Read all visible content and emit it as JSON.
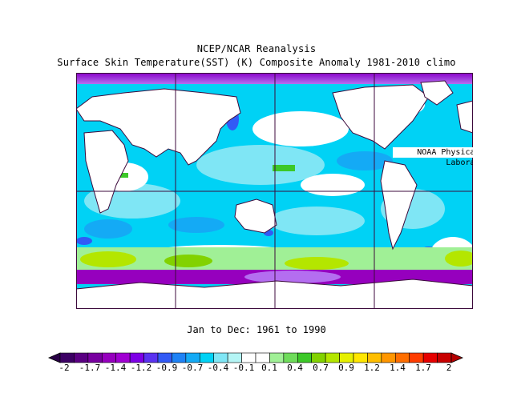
{
  "title_line1": "NCEP/NCAR Reanalysis",
  "title_line2": "Surface Skin Temperature(SST) (K) Composite Anomaly 1981-2010 climo",
  "credit": "NOAA Physical Sciences Laboratory",
  "period": "Jan to Dec: 1961 to 1990",
  "colorbar": {
    "labels": [
      "-2",
      "-1.7",
      "-1.4",
      "-1.2",
      "-0.9",
      "-0.7",
      "-0.4",
      "-0.1",
      "0.1",
      "0.4",
      "0.7",
      "0.9",
      "1.2",
      "1.4",
      "1.7",
      "2"
    ],
    "colors": [
      "#3c0064",
      "#5a0082",
      "#7800a0",
      "#9600be",
      "#a000d2",
      "#7d00e6",
      "#5a32f0",
      "#325af5",
      "#1e82f5",
      "#14aaf5",
      "#00d2f5",
      "#7fe6f5",
      "#b4f5f5",
      "#ffffff",
      "#ffffff",
      "#a0f096",
      "#6edc5a",
      "#3cc828",
      "#82d200",
      "#b4e600",
      "#e6f000",
      "#ffe600",
      "#ffbe00",
      "#ff9600",
      "#ff6e00",
      "#ff3c00",
      "#e60000",
      "#c80000"
    ],
    "below_color": "#280046",
    "above_color": "#b40000"
  },
  "legend_semantics": {
    "land": "#ffffff",
    "gridline_color": "#3c0a3c",
    "coastline_color": "#3c0a3c"
  }
}
